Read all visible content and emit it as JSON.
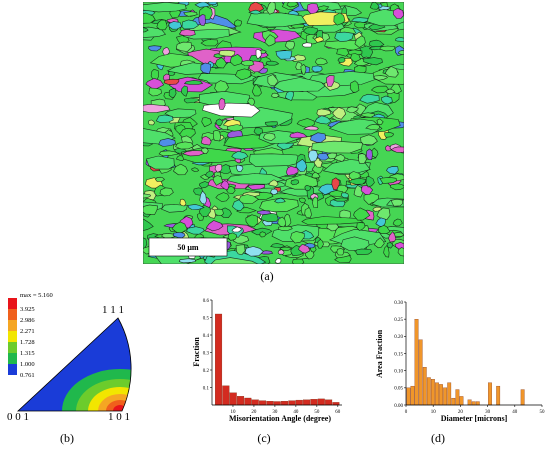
{
  "captions": {
    "a": "(a)",
    "b": "(b)",
    "c": "(c)",
    "d": "(d)"
  },
  "ebsd_map": {
    "scale_bar_label": "50 μm"
  },
  "ipf": {
    "legend_header": "max = 5.160",
    "legend_values": [
      "3.925",
      "2.986",
      "2.271",
      "1.728",
      "1.315",
      "1.000",
      "0.761"
    ],
    "legend_colors": [
      "#e8141a",
      "#f0601c",
      "#f5a623",
      "#f2e600",
      "#6ccc2c",
      "#20b84c",
      "#1a3cd8"
    ],
    "corner_001": "0 0 1",
    "corner_101": "1 0 1",
    "corner_111": "1 1 1"
  },
  "chart_data": [
    {
      "type": "bar",
      "xlabel": "Misorientation Angle (degree)",
      "ylabel": "Fraction",
      "xlim": [
        0,
        62
      ],
      "ylim": [
        0,
        0.6
      ],
      "xticks": [
        "10",
        "20",
        "30",
        "40",
        "50",
        "60"
      ],
      "yticks": [
        "0.1",
        "0.2",
        "0.3",
        "0.4",
        "0.5",
        "0.6"
      ],
      "bin_width": 3.5,
      "x": [
        3.25,
        6.75,
        10.25,
        13.75,
        17.25,
        20.75,
        24.25,
        27.75,
        31.25,
        34.75,
        38.25,
        41.75,
        45.25,
        48.75,
        52.25,
        55.75,
        59.25
      ],
      "values": [
        0.52,
        0.11,
        0.07,
        0.05,
        0.04,
        0.03,
        0.025,
        0.022,
        0.02,
        0.022,
        0.025,
        0.028,
        0.03,
        0.033,
        0.035,
        0.03,
        0.015
      ],
      "color": "#d32b20"
    },
    {
      "type": "bar",
      "xlabel": "Diameter [microns]",
      "ylabel": "Area Fraction",
      "xlim": [
        0,
        50
      ],
      "ylim": [
        0,
        0.3
      ],
      "xticks": [
        "0",
        "10",
        "20",
        "30",
        "40",
        "50"
      ],
      "yticks": [
        "0.00",
        "0.05",
        "0.10",
        "0.15",
        "0.20",
        "0.25",
        "0.30"
      ],
      "bin_width": 1.5,
      "x": [
        1,
        2.5,
        4,
        5.5,
        7,
        8.5,
        10,
        11.5,
        13,
        14.5,
        16,
        17.5,
        19,
        20.5,
        22,
        23.5,
        25,
        26.5,
        28,
        29.5,
        31,
        32.5,
        34,
        35.5,
        37,
        38.5,
        40,
        41.5,
        43
      ],
      "values": [
        0.05,
        0.055,
        0.25,
        0.19,
        0.11,
        0.08,
        0.075,
        0.065,
        0.06,
        0.05,
        0.065,
        0.02,
        0.045,
        0.025,
        0.0,
        0.015,
        0.01,
        0.01,
        0.0,
        0.0,
        0.065,
        0.0,
        0.055,
        0.0,
        0.0,
        0.0,
        0.0,
        0.0,
        0.045
      ],
      "color": "#f0962a"
    }
  ]
}
